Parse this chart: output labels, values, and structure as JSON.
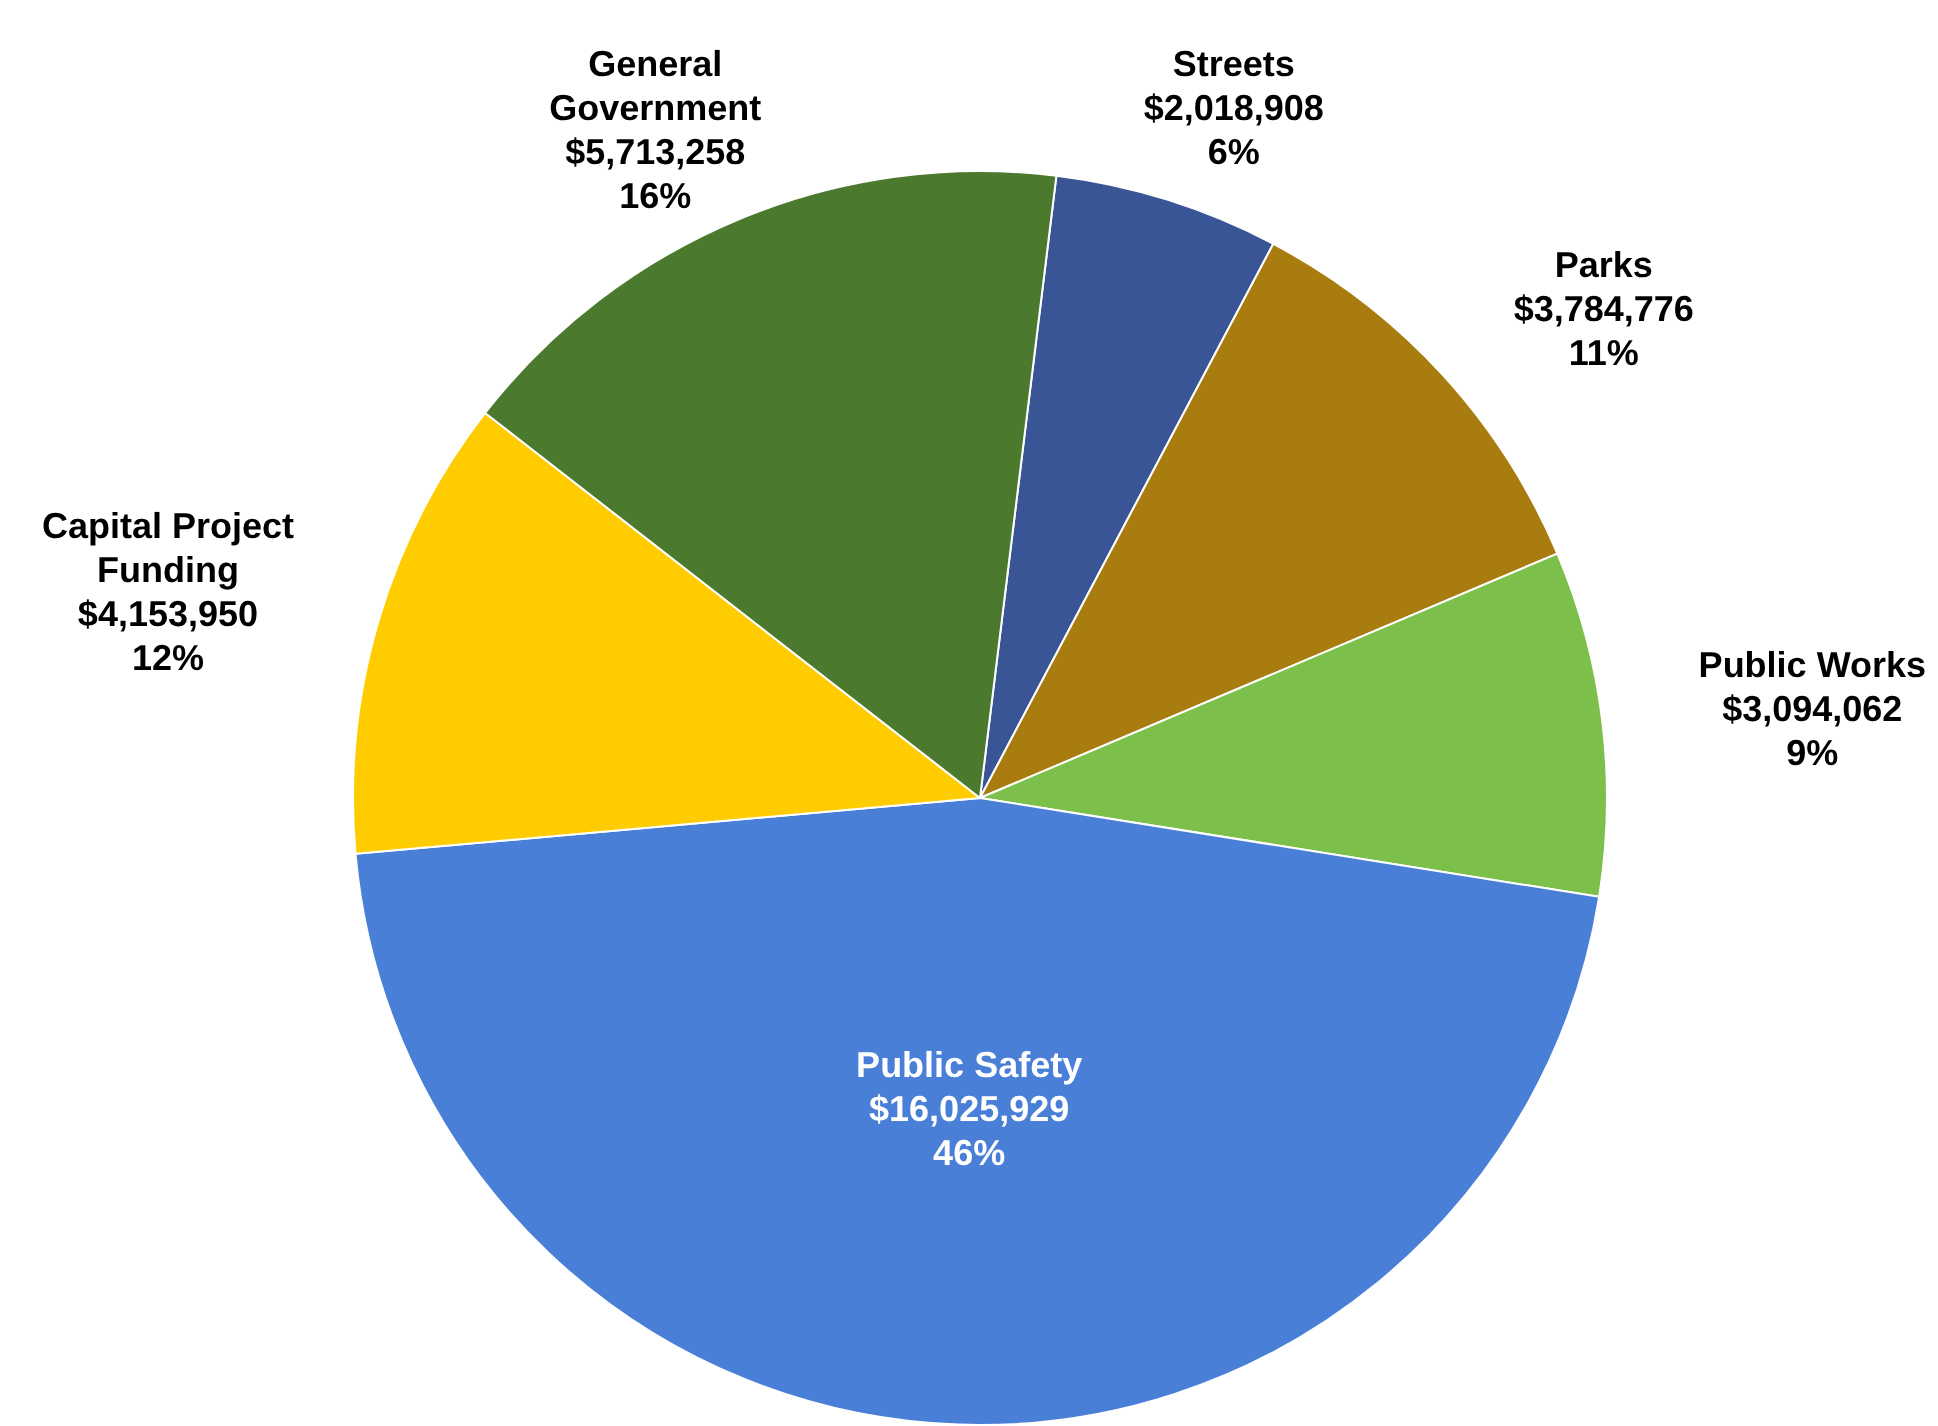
{
  "chart_data": {
    "type": "pie",
    "categories": [
      "Streets",
      "Parks",
      "Public Works",
      "Public Safety",
      "Capital Project Funding",
      "General Government"
    ],
    "values": [
      2018908,
      3784776,
      3094062,
      16025929,
      4153950,
      5713258
    ],
    "colors": [
      "#3a5596",
      "#a97c10",
      "#7cc04b",
      "#4a7fd8",
      "#ffcc00",
      "#4b7a2f"
    ],
    "value_labels": [
      "$2,018,908\n6%",
      "$3,784,776\n11%",
      "$3,094,062\n9%",
      "$16,025,929\n46%",
      "$4,153,950\n12%",
      "$5,713,258\n16%"
    ]
  }
}
